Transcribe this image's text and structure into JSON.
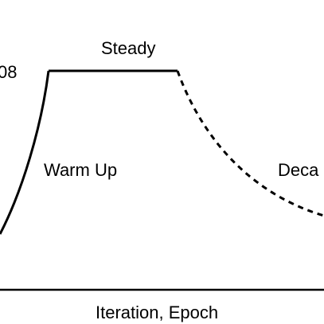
{
  "chart_data": {
    "type": "line",
    "title": "",
    "xlabel": "Iteration, Epoch",
    "ylabel": "",
    "y_tick_label": "08",
    "phases": [
      {
        "name": "warm-up",
        "label": "Warm Up",
        "style": "solid"
      },
      {
        "name": "steady",
        "label": "Steady",
        "style": "solid"
      },
      {
        "name": "decay",
        "label": "Deca",
        "style": "dashed"
      }
    ],
    "colors": {
      "line": "#000000",
      "axis": "#000000"
    },
    "grid": false
  }
}
